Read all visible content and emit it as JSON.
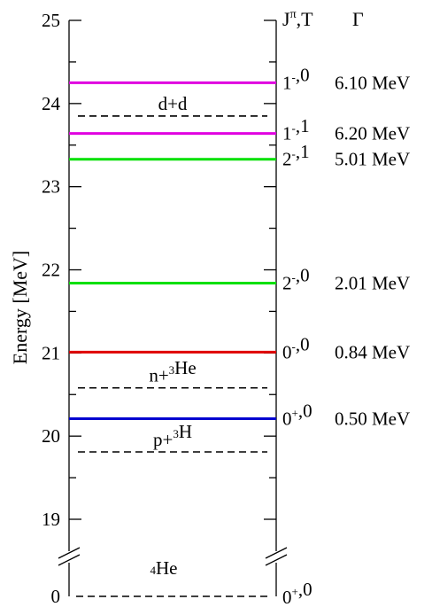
{
  "chart_data": {
    "type": "level-diagram",
    "ylabel": "Energy [MeV]",
    "ylim": [
      18.5,
      25
    ],
    "yticks": [
      {
        "value": 25,
        "label": "25"
      },
      {
        "value": 24,
        "label": "24"
      },
      {
        "value": 23,
        "label": "23"
      },
      {
        "value": 22,
        "label": "22"
      },
      {
        "value": 21,
        "label": "21"
      },
      {
        "value": 20,
        "label": "20"
      },
      {
        "value": 19,
        "label": "19"
      }
    ],
    "ground": {
      "value": 0,
      "label": "0",
      "name": "⁴He",
      "jpt": "0⁺,0"
    },
    "header": {
      "jpt": "Jπ,T",
      "width": "Γ"
    },
    "levels": [
      {
        "energy": 24.25,
        "color": "#e000e0",
        "jpt": "1⁻,0",
        "width": "6.10 MeV"
      },
      {
        "energy": 23.64,
        "color": "#e000e0",
        "jpt": "1⁻,1",
        "width": "6.20 MeV"
      },
      {
        "energy": 23.33,
        "color": "#00e000",
        "jpt": "2⁻,1",
        "width": "5.01 MeV"
      },
      {
        "energy": 21.84,
        "color": "#00e000",
        "jpt": "2⁻,0",
        "width": "2.01 MeV"
      },
      {
        "energy": 21.01,
        "color": "#e00000",
        "jpt": "0⁻,0",
        "width": "0.84 MeV"
      },
      {
        "energy": 20.21,
        "color": "#0000d0",
        "jpt": "0⁺,0",
        "width": "0.50 MeV"
      }
    ],
    "thresholds": [
      {
        "energy": 23.85,
        "label": "d+d"
      },
      {
        "energy": 20.58,
        "label": "n+³He"
      },
      {
        "energy": 19.81,
        "label": "p+³H"
      }
    ]
  }
}
